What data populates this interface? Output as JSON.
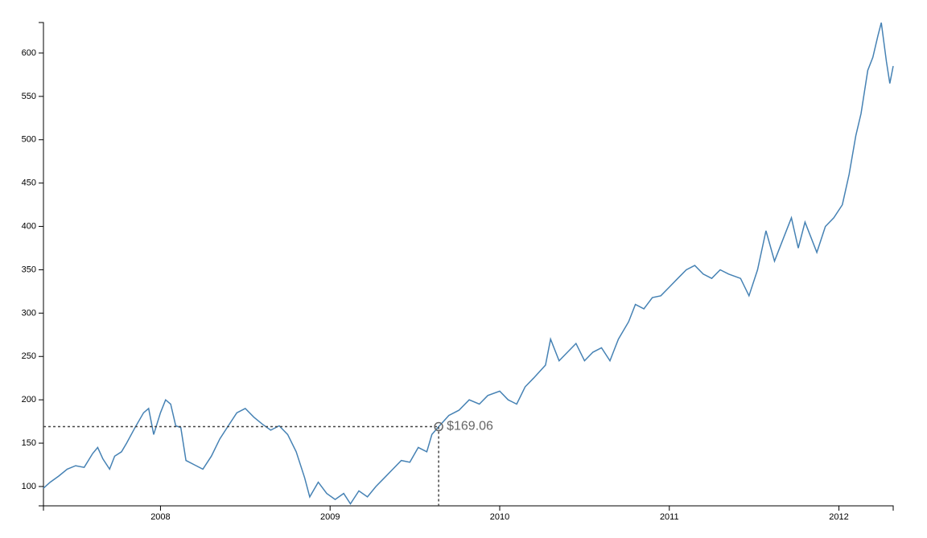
{
  "chart_data": {
    "type": "line",
    "color": "#4682b4",
    "x": [
      2007.31,
      2007.35,
      2007.4,
      2007.45,
      2007.5,
      2007.55,
      2007.6,
      2007.63,
      2007.66,
      2007.7,
      2007.73,
      2007.77,
      2007.8,
      2007.85,
      2007.9,
      2007.93,
      2007.96,
      2008.0,
      2008.03,
      2008.06,
      2008.09,
      2008.12,
      2008.15,
      2008.2,
      2008.25,
      2008.3,
      2008.35,
      2008.4,
      2008.45,
      2008.5,
      2008.55,
      2008.6,
      2008.65,
      2008.7,
      2008.75,
      2008.8,
      2008.85,
      2008.88,
      2008.93,
      2008.98,
      2009.03,
      2009.08,
      2009.12,
      2009.17,
      2009.22,
      2009.27,
      2009.32,
      2009.37,
      2009.42,
      2009.47,
      2009.52,
      2009.57,
      2009.6,
      2009.64,
      2009.7,
      2009.76,
      2009.82,
      2009.88,
      2009.93,
      2010.0,
      2010.05,
      2010.1,
      2010.15,
      2010.2,
      2010.27,
      2010.3,
      2010.35,
      2010.4,
      2010.45,
      2010.5,
      2010.55,
      2010.6,
      2010.65,
      2010.7,
      2010.76,
      2010.8,
      2010.85,
      2010.9,
      2010.95,
      2011.0,
      2011.05,
      2011.1,
      2011.15,
      2011.2,
      2011.25,
      2011.3,
      2011.35,
      2011.42,
      2011.47,
      2011.52,
      2011.57,
      2011.62,
      2011.67,
      2011.72,
      2011.76,
      2011.8,
      2011.83,
      2011.87,
      2011.92,
      2011.97,
      2012.02,
      2012.06,
      2012.1,
      2012.13,
      2012.17,
      2012.2,
      2012.23,
      2012.25,
      2012.28,
      2012.3,
      2012.32
    ],
    "values": [
      98,
      105,
      112,
      120,
      124,
      122,
      138,
      145,
      132,
      120,
      135,
      140,
      150,
      168,
      185,
      190,
      160,
      185,
      200,
      195,
      170,
      168,
      130,
      125,
      120,
      135,
      155,
      170,
      185,
      190,
      180,
      172,
      165,
      170,
      160,
      140,
      110,
      88,
      105,
      92,
      85,
      92,
      80,
      95,
      88,
      100,
      110,
      120,
      130,
      128,
      145,
      140,
      160,
      169,
      182,
      188,
      200,
      195,
      205,
      210,
      200,
      195,
      215,
      225,
      240,
      270,
      245,
      255,
      265,
      245,
      255,
      260,
      245,
      270,
      290,
      310,
      305,
      318,
      320,
      330,
      340,
      350,
      355,
      345,
      340,
      350,
      345,
      340,
      320,
      350,
      395,
      360,
      385,
      410,
      375,
      405,
      390,
      370,
      400,
      410,
      425,
      460,
      505,
      530,
      580,
      595,
      620,
      635,
      590,
      565,
      585
    ],
    "xlim": [
      2007.31,
      2012.32
    ],
    "xticks": [
      2008,
      2009,
      2010,
      2011,
      2012
    ],
    "ylim": [
      77.7,
      635.2
    ],
    "yticks": [
      100,
      150,
      200,
      250,
      300,
      350,
      400,
      450,
      500,
      550,
      600
    ],
    "focus": {
      "x": 2009.64,
      "value": 169.06,
      "label": "$169.06"
    }
  }
}
